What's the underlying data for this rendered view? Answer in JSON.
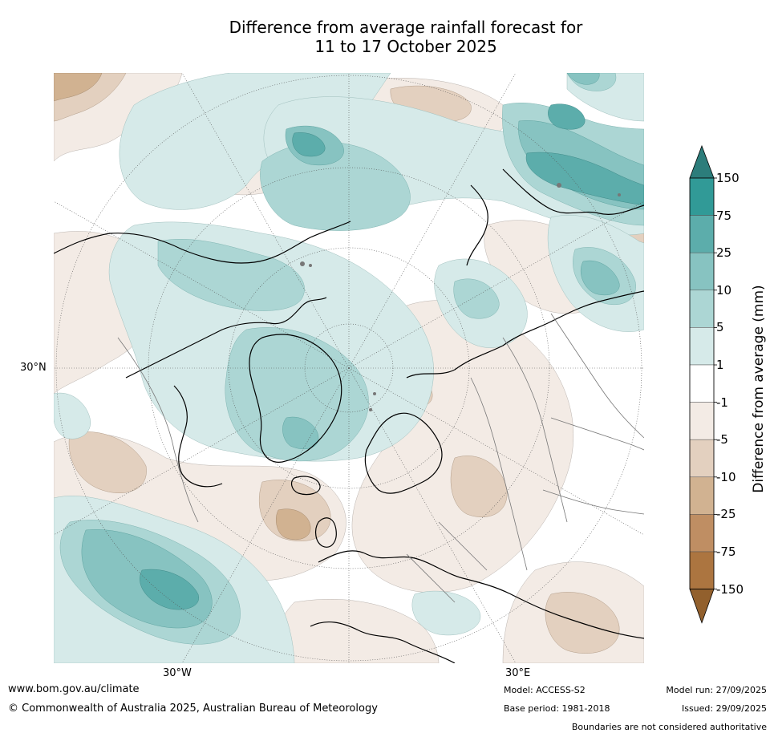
{
  "title": {
    "line1": "Difference from average rainfall forecast for",
    "line2": "11 to 17 October 2025"
  },
  "map": {
    "projection": "north-polar-stereographic",
    "labels": {
      "lat_30n": "30°N",
      "lon_30w": "30°W",
      "lon_30e": "30°E"
    }
  },
  "colorbar": {
    "title": "Difference from average (mm)",
    "tick_labels": [
      "150",
      "75",
      "25",
      "10",
      "5",
      "1",
      "-1",
      "-5",
      "-10",
      "-25",
      "-75",
      "-150"
    ],
    "colors": [
      "#2c7d7b",
      "#319a97",
      "#5cadab",
      "#87c3c1",
      "#acd6d4",
      "#d6eae9",
      "#ffffff",
      "#f3ebe5",
      "#e3d0bf",
      "#d1b291",
      "#bf8e63",
      "#ac7540",
      "#92602d"
    ]
  },
  "footer": {
    "website": "www.bom.gov.au/climate",
    "copyright": "© Commonwealth of Australia 2025, Australian Bureau of Meteorology",
    "model": "Model: ACCESS-S2",
    "base_period": "Base period: 1981-2018",
    "model_run": "Model run: 27/09/2025",
    "issued": "Issued: 29/09/2025",
    "disclaimer": "Boundaries are not considered authoritative"
  }
}
